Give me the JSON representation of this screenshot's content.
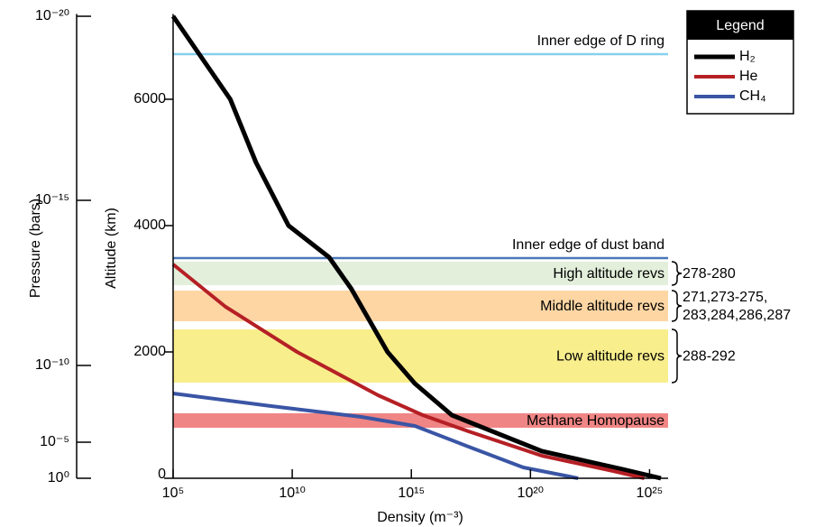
{
  "chart_data": {
    "type": "line",
    "x_label": "Density (m⁻³)",
    "y_label": "Altitude (km)",
    "log_x": true,
    "xlim": [
      100000.0,
      6e+25
    ],
    "ylim": [
      0,
      7350
    ],
    "xticks": [
      {
        "value": 100000.0,
        "label": "10⁵"
      },
      {
        "value": 10000000000.0,
        "label": "10¹⁰"
      },
      {
        "value": 1000000000000000.0,
        "label": "10¹⁵"
      },
      {
        "value": 1e+20,
        "label": "10²⁰"
      },
      {
        "value": 1e+25,
        "label": "10²⁵"
      }
    ],
    "yticks": [
      0,
      2000,
      4000,
      6000
    ],
    "legend_title": "Legend",
    "legend_position": "upper right",
    "series": [
      {
        "name": "H₂",
        "color": "#000000",
        "width": 5,
        "x": [
          100000.0,
          25000000.0,
          300000000.0,
          7000000000.0,
          350000000000.0,
          3000000000000.0,
          100000000000000.0,
          1400000000000000.0,
          5e+16,
          3e+20,
          7e+23,
          3e+25
        ],
        "values": [
          7314,
          6000,
          5000,
          4000,
          3500,
          3000,
          2000,
          1500,
          1000,
          430,
          143,
          0
        ]
      },
      {
        "name": "He",
        "color": "#b52025",
        "width": 4,
        "x": [
          100000.0,
          16000000.0,
          16000000000.0,
          40000000000000.0,
          3000000000000000.0,
          2.5e+17,
          3e+20,
          3e+23,
          6e+24
        ],
        "values": [
          3386,
          2714,
          2000,
          1314,
          1000,
          743,
          357,
          114,
          0
        ]
      },
      {
        "name": "CH₄",
        "color": "#3a55a5",
        "width": 4,
        "x": [
          100000.0,
          1300000000.0,
          8000000000000.0,
          1400000000000000.0,
          2.5e+17,
          5e+19,
          1e+22
        ],
        "values": [
          1343,
          1143,
          971,
          829,
          500,
          171,
          0
        ]
      }
    ],
    "pressure_axis": {
      "label": "Pressure (bars)",
      "ticks": [
        {
          "value": 1e-20,
          "label": "10⁻²⁰",
          "altitude": 7314
        },
        {
          "value": 1e-15,
          "label": "10⁻¹⁵",
          "altitude": 4400
        },
        {
          "value": 1e-10,
          "label": "10⁻¹⁰",
          "altitude": 1786
        },
        {
          "value": 1e-05,
          "label": "10⁻⁵",
          "altitude": 571
        },
        {
          "value": 1,
          "label": "10⁰",
          "altitude": 0
        }
      ]
    },
    "reference_lines": [
      {
        "label": "Inner edge of D ring",
        "altitude": 6714,
        "color": "#86d0ee"
      },
      {
        "label": "Inner edge of dust band",
        "altitude": 3486,
        "color": "#4a78b8"
      }
    ],
    "bands": [
      {
        "label": "High altitude revs",
        "from": 3057,
        "to": 3429,
        "color": "#e3efdb",
        "revs": [
          "278-280"
        ]
      },
      {
        "label": "Middle altitude revs",
        "from": 2486,
        "to": 2971,
        "color": "#fdd6a4",
        "revs": [
          "271,273-275,",
          "283,284,286,287"
        ]
      },
      {
        "label": "Low altitude revs",
        "from": 1514,
        "to": 2357,
        "color": "#f8ee8c",
        "revs": [
          "288-292"
        ]
      },
      {
        "label": "Methane Homopause",
        "from": 800,
        "to": 1029,
        "color": "#f08585"
      }
    ]
  }
}
